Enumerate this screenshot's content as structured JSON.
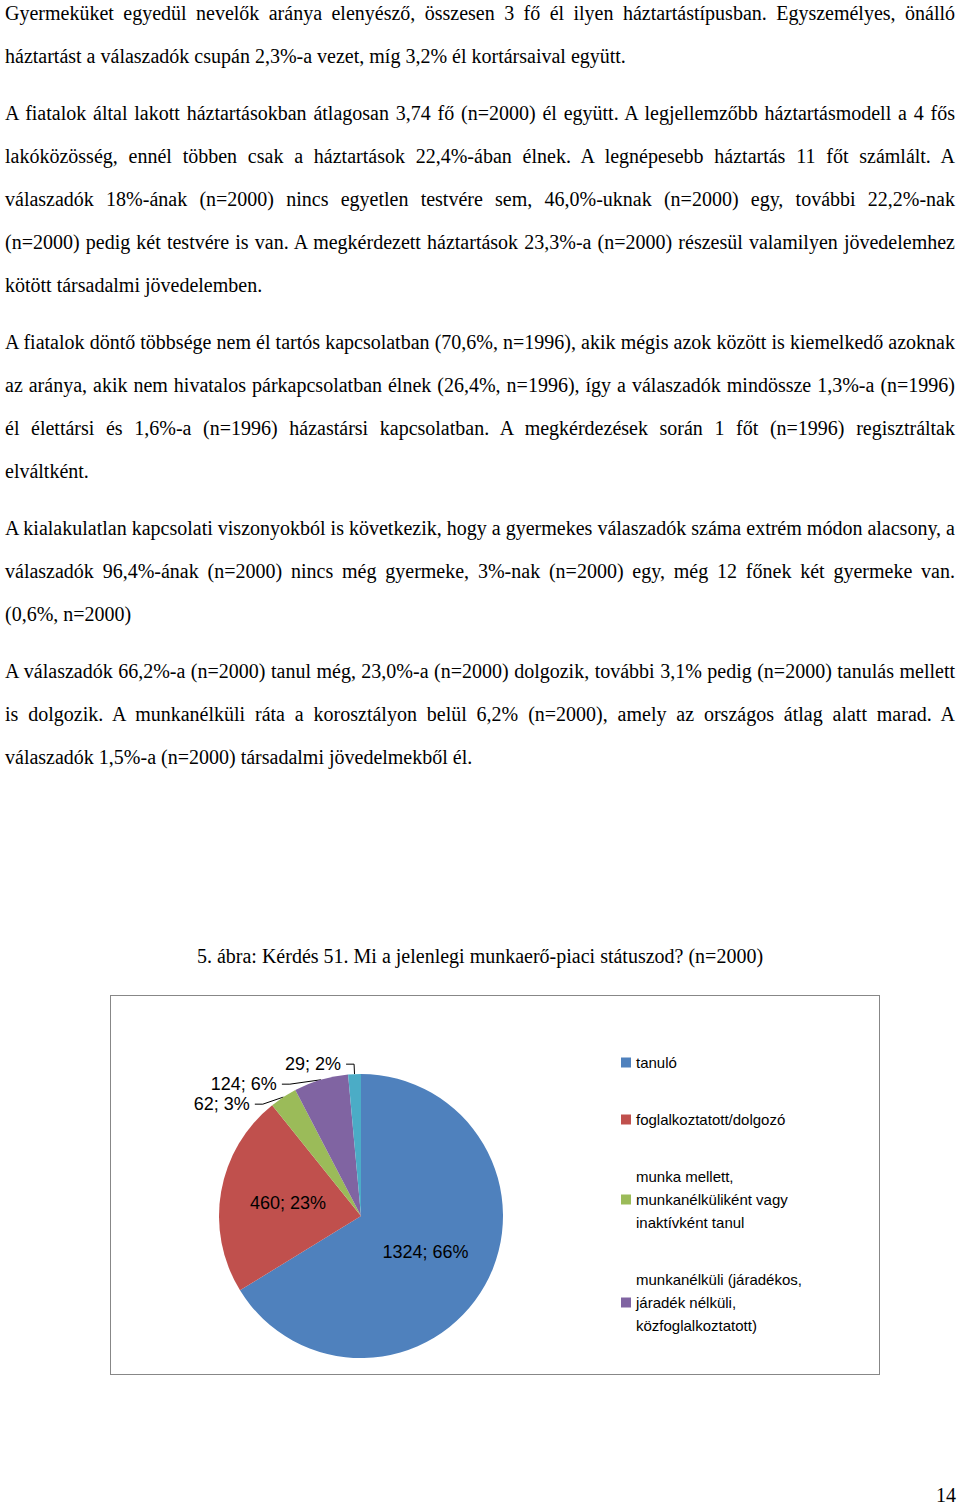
{
  "document": {
    "paragraphs": [
      "Gyermeküket egyedül nevelők aránya elenyésző, összesen 3 fő él ilyen háztartástípusban. Egyszemélyes, önálló háztartást a válaszadók csupán 2,3%-a vezet, míg 3,2% él kortársaival együtt.",
      "A fiatalok által lakott háztartásokban átlagosan 3,74 fő (n=2000) él együtt. A legjellemzőbb háztartásmodell a 4 fős lakóközösség, ennél többen csak a háztartások 22,4%-ában élnek. A legnépesebb háztartás 11 főt számlált. A válaszadók 18%-ának (n=2000) nincs egyetlen testvére sem, 46,0%-uknak (n=2000) egy, további 22,2%-nak (n=2000) pedig két testvére is van. A megkérdezett háztartások 23,3%-a (n=2000) részesül valamilyen jövedelemhez kötött társadalmi jövedelemben.",
      "A fiatalok döntő többsége nem él tartós kapcsolatban (70,6%, n=1996), akik mégis azok között is kiemelkedő azoknak az aránya, akik nem hivatalos párkapcsolatban élnek (26,4%, n=1996), így a válaszadók mindössze 1,3%-a (n=1996) él élettársi és 1,6%-a (n=1996) házastársi kapcsolatban. A megkérdezések során 1 főt (n=1996) regisztráltak elváltként.",
      "A kialakulatlan kapcsolati viszonyokból is következik, hogy a gyermekes válaszadók száma extrém módon alacsony, a válaszadók 96,4%-ának (n=2000) nincs még gyermeke, 3%-nak (n=2000) egy, még 12 főnek két gyermeke van. (0,6%, n=2000)",
      "A válaszadók 66,2%-a (n=2000) tanul még, 23,0%-a (n=2000) dolgozik, további 3,1% pedig (n=2000) tanulás mellett is dolgozik. A munkanélküli ráta a korosztályon belül 6,2% (n=2000), amely az országos átlag alatt marad. A válaszadók 1,5%-a (n=2000) társadalmi jövedelmekből él."
    ],
    "caption": "5. ábra: Kérdés 51. Mi a jelenlegi munkaerő-piaci státuszod? (n=2000)",
    "page_number": "14"
  },
  "chart_data": {
    "type": "pie",
    "categories": [
      "tanuló",
      "foglalkoztatott/dolgozó",
      "munka mellett, munkanélküliként vagy inaktívként tanul",
      "munkanélküli (járadékos, járadék nélküli, közfoglalkoztatott)",
      null
    ],
    "values": [
      1324,
      460,
      62,
      124,
      29
    ],
    "value_labels": [
      "1324; 66%",
      "460; 23%",
      "62; 3%",
      "124; 6%",
      "29; 2%"
    ],
    "colors": [
      "#4f81bd",
      "#c0504d",
      "#9bbb59",
      "#8064a2",
      "#4bacc6"
    ],
    "data_labels": true,
    "legend": "right"
  }
}
